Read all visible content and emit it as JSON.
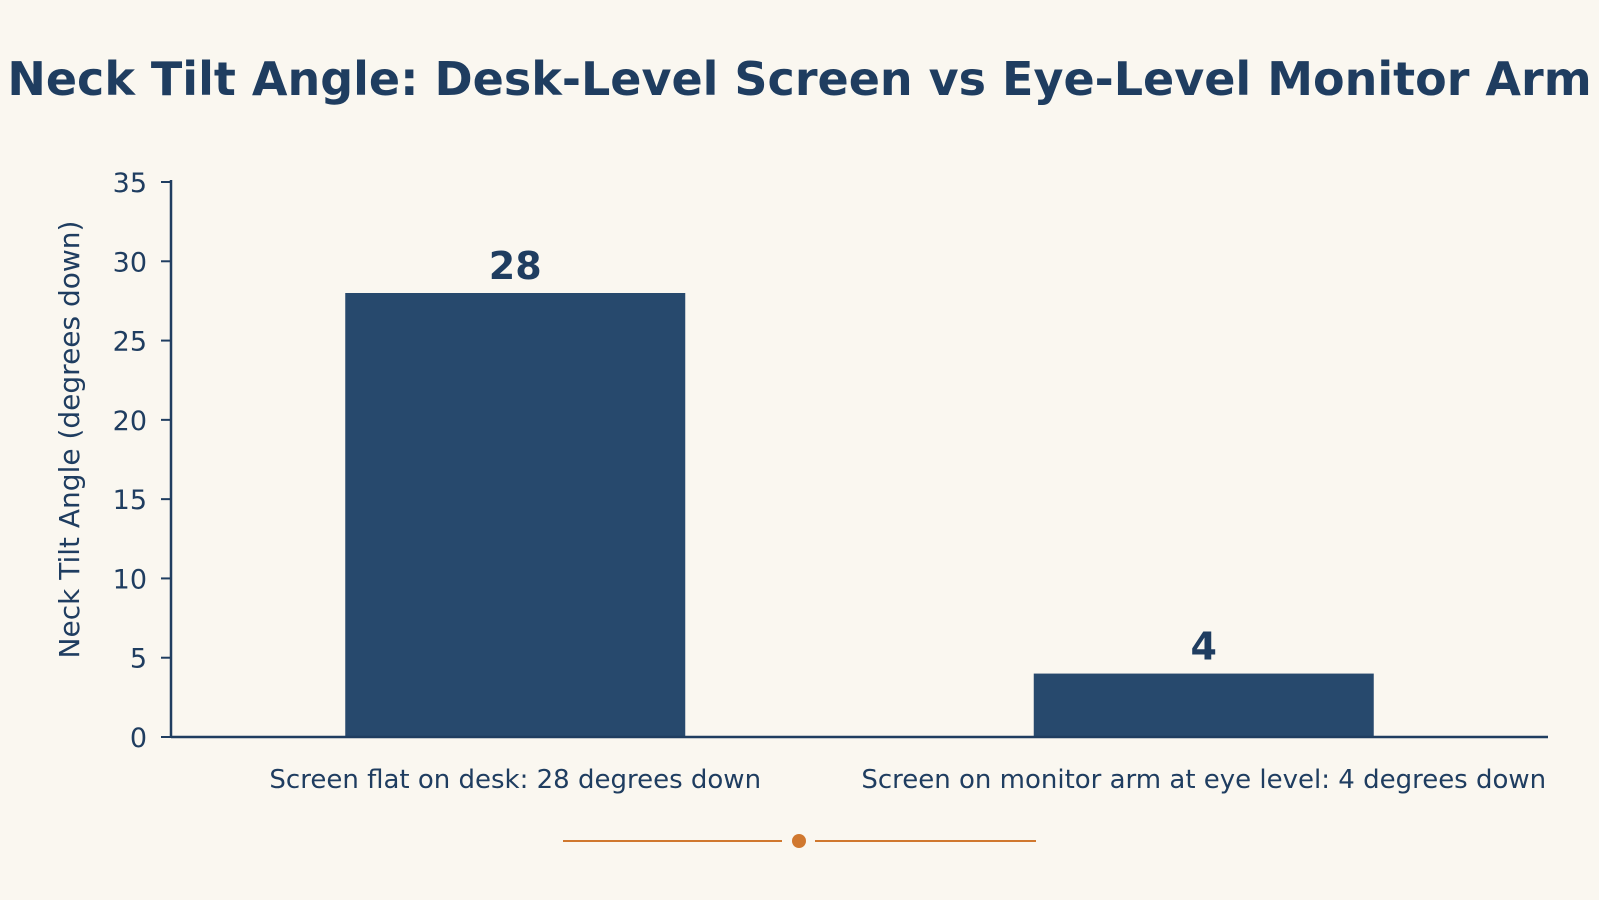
{
  "chart_data": {
    "type": "bar",
    "title": "Neck Tilt Angle: Desk-Level Screen vs Eye-Level Monitor Arm",
    "xlabel": "",
    "ylabel": "Neck Tilt Angle (degrees down)",
    "categories": [
      "Screen flat on desk: 28 degrees down",
      "Screen on monitor arm at eye level: 4 degrees down"
    ],
    "values": [
      28,
      4
    ],
    "data_labels": [
      "28",
      "4"
    ],
    "ylim": [
      0,
      35
    ],
    "yticks": [
      0,
      5,
      10,
      15,
      20,
      25,
      30,
      35
    ],
    "grid": false,
    "legend": "none",
    "colors": {
      "bar": "#27496d",
      "text": "#1f3d60",
      "axis": "#1f3d60",
      "divider": "#d0782f",
      "background": "#faf7f0"
    }
  }
}
